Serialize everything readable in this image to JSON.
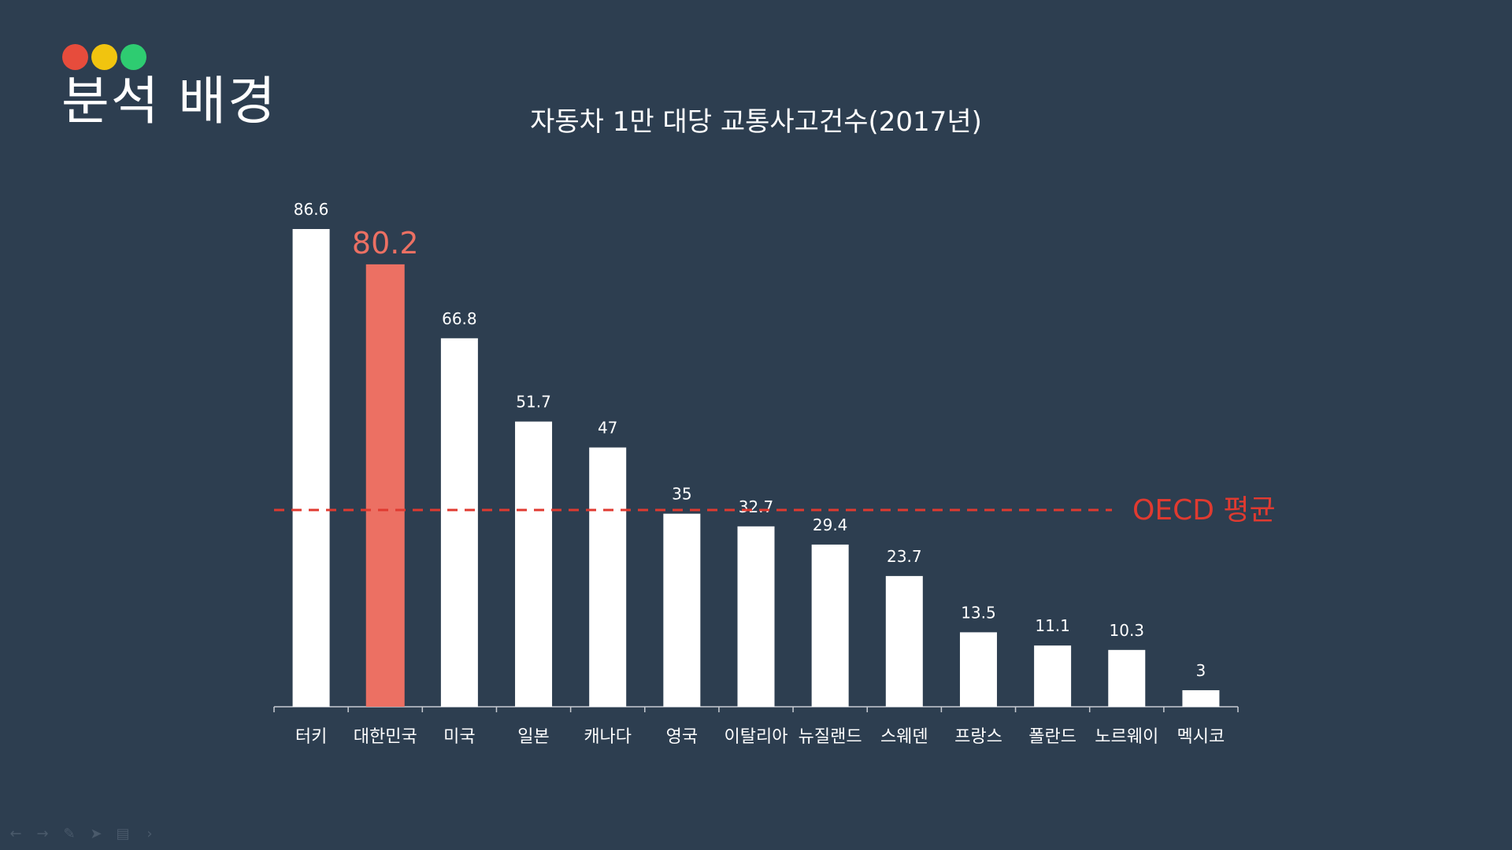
{
  "header": {
    "title": "분석 배경",
    "dot_colors": [
      "#e74c3c",
      "#f1c40f",
      "#2ecc71"
    ]
  },
  "nav_icons": [
    "arrow-left-icon",
    "arrow-right-icon",
    "pen-icon",
    "pointer-icon",
    "menu-icon",
    "chevron-right-icon"
  ],
  "chart_data": {
    "type": "bar",
    "title": "자동차 1만 대당 교통사고건수(2017년)",
    "categories": [
      "터키",
      "대한민국",
      "미국",
      "일본",
      "캐나다",
      "영국",
      "이탈리아",
      "뉴질랜드",
      "스웨덴",
      "프랑스",
      "폴란드",
      "노르웨이",
      "멕시코"
    ],
    "values": [
      86.6,
      80.2,
      66.8,
      51.7,
      47,
      35,
      32.7,
      29.4,
      23.7,
      13.5,
      11.1,
      10.3,
      3
    ],
    "value_labels": [
      "86.6",
      "80.2",
      "66.8",
      "51.7",
      "47",
      "35",
      "32.7",
      "29.4",
      "23.7",
      "13.5",
      "11.1",
      "10.3",
      "3"
    ],
    "highlight_category": "대한민국",
    "colors": {
      "bar": "#ffffff",
      "highlight": "#ec7063",
      "reference": "#e03a30",
      "text": "#ffffff"
    },
    "ylim": [
      0,
      86.6
    ],
    "reference_line": {
      "label": "OECD 평균",
      "style": "dashed"
    }
  }
}
